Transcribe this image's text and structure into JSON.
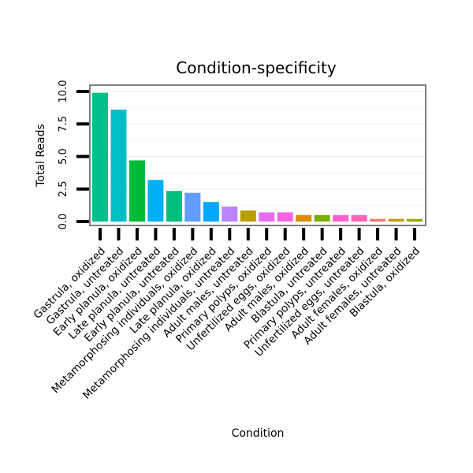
{
  "chart_data": {
    "type": "bar",
    "title": "Condition-specificity",
    "xlabel": "Condition",
    "ylabel": "Total Reads",
    "ylim": [
      0,
      10.3
    ],
    "yticks": [
      0.0,
      2.5,
      5.0,
      7.5,
      10.0
    ],
    "ytick_labels": [
      "0.0",
      "2.5",
      "5.0",
      "7.5",
      "10.0"
    ],
    "grid": true,
    "categories": [
      "Gastrula, oxidized",
      "Gastrula, untreated",
      "Early planula, oxidized",
      "Late planula, untreated",
      "Early planula, untreated",
      "Metamorphosing individuals, oxidized",
      "Late planula, oxidized",
      "Metamorphosing individuals, untreated",
      "Adult males, untreated",
      "Primary polyps, oxidized",
      "Unfertilized eggs, oxidized",
      "Adult males, oxidized",
      "Blastula, untreated",
      "Primary polyps, untreated",
      "Unfertilized eggs, untreated",
      "Adult females, oxidized",
      "Adult females, untreated",
      "Blastula, oxidized"
    ],
    "values": [
      9.9,
      8.6,
      4.7,
      3.2,
      2.35,
      2.2,
      1.5,
      1.15,
      0.85,
      0.7,
      0.7,
      0.5,
      0.5,
      0.5,
      0.5,
      0.2,
      0.2,
      0.2
    ],
    "colors": [
      "#00C08B",
      "#00BFC4",
      "#00BA38",
      "#00B0F6",
      "#00BF7D",
      "#619CFF",
      "#00A9FF",
      "#B983FF",
      "#B79F00",
      "#E76BF3",
      "#F564E3",
      "#DE8C00",
      "#7CAE00",
      "#FD61D1",
      "#FF64B0",
      "#F8766D",
      "#C99800",
      "#9BA500"
    ]
  }
}
